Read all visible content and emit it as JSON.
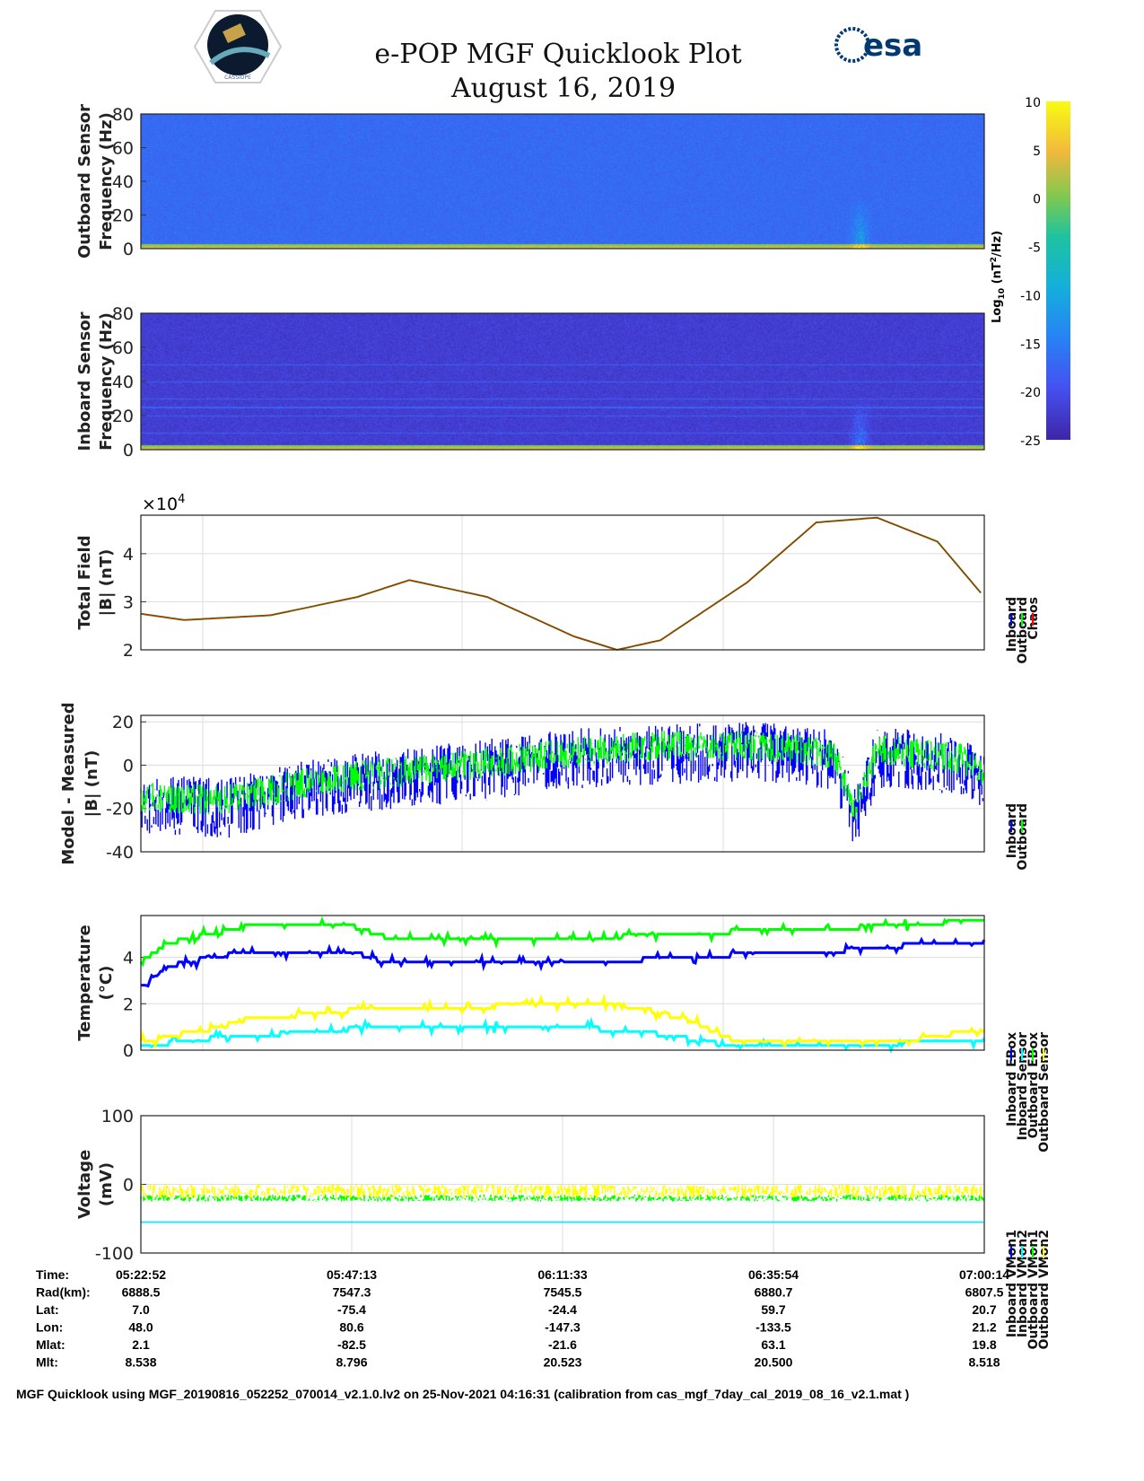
{
  "header": {
    "title": "e-POP MGF Quicklook Plot",
    "date": "August 16, 2019",
    "logo_left": "CASSIOPE",
    "logo_right": "esa"
  },
  "colorbar": {
    "label_main": "Log",
    "label_sub": "10",
    "label_rest": " (nT",
    "label_sup": "2",
    "label_end": "/Hz)",
    "ticks": [
      "10",
      "5",
      "0",
      "-5",
      "-10",
      "-15",
      "-20",
      "-25"
    ],
    "range": [
      -25,
      10
    ]
  },
  "footer": "MGF Quicklook using MGF_20190816_052252_070014_v2.1.0.lv2 on 25-Nov-2021 04:16:31 (calibration from cas_mgf_7day_cal_2019_08_16_v2.1.mat )",
  "ephemeris": {
    "labels": [
      "Time:",
      "Rad(km):",
      "Lat:",
      "Lon:",
      "Mlat:",
      "Mlt:"
    ],
    "columns": [
      [
        "05:22:52",
        "6888.5",
        "7.0",
        "48.0",
        "2.1",
        "8.538"
      ],
      [
        "05:47:13",
        "7547.3",
        "-75.4",
        "80.6",
        "-82.5",
        "8.796"
      ],
      [
        "06:11:33",
        "7545.5",
        "-24.4",
        "-147.3",
        "-21.6",
        "20.523"
      ],
      [
        "06:35:54",
        "6880.7",
        "59.7",
        "-133.5",
        "63.1",
        "20.500"
      ],
      [
        "07:00:14",
        "6807.5",
        "20.7",
        "21.2",
        "19.8",
        "8.518"
      ]
    ]
  },
  "chart_data": [
    {
      "type": "heatmap",
      "title": "Outboard spectrogram",
      "ylabel": [
        "Outboard Sensor",
        "Frequency (Hz)"
      ],
      "ylim": [
        0,
        80
      ],
      "yticks": [
        "0",
        "20",
        "40",
        "60",
        "80"
      ],
      "background_log10": -17,
      "low_freq_log10": 5,
      "burst_at_min": 83
    },
    {
      "type": "heatmap",
      "title": "Inboard spectrogram",
      "ylabel": [
        "Inboard Sensor",
        "Frequency (Hz)"
      ],
      "ylim": [
        0,
        80
      ],
      "yticks": [
        "0",
        "20",
        "40",
        "60",
        "80"
      ],
      "background_log10": -22,
      "line_freqs_hz": [
        10,
        20,
        25,
        30,
        40,
        50
      ],
      "low_freq_log10": 5,
      "burst_at_min": 83
    },
    {
      "type": "line",
      "ylabel": [
        "Total Field",
        "|B| (nT)"
      ],
      "exponent_label": "×10",
      "exponent_sup": "4",
      "ylim": [
        2,
        4.8
      ],
      "yticks": [
        "2",
        "3",
        "4"
      ],
      "x_min": [
        0,
        5,
        15,
        25,
        31,
        40,
        50,
        55,
        60,
        70,
        78,
        85,
        92,
        97.4
      ],
      "legend": [
        "Inboard",
        "Outboard",
        "Chaos"
      ],
      "series": [
        {
          "name": "Chaos",
          "values": [
            2.75,
            2.62,
            2.72,
            3.1,
            3.45,
            3.1,
            2.28,
            2.0,
            2.2,
            3.4,
            4.65,
            4.75,
            4.25,
            3.1
          ]
        }
      ]
    },
    {
      "type": "line",
      "ylabel": [
        "Model - Measured",
        "|B| (nT)"
      ],
      "ylim": [
        -40,
        23
      ],
      "yticks": [
        "20",
        "0",
        "-20",
        "-40"
      ],
      "x_min": [
        0,
        10,
        20,
        30,
        40,
        50,
        60,
        70,
        75,
        80,
        82.5,
        85,
        88,
        95,
        97.4
      ],
      "legend": [
        "Inboard",
        "Outboard"
      ],
      "series": [
        {
          "name": "Inboard",
          "values": [
            -18,
            -20,
            -10,
            -6,
            -2,
            3,
            5,
            6,
            5,
            2,
            -25,
            3,
            3,
            0,
            -6
          ],
          "spread": 14
        },
        {
          "name": "Outboard",
          "values": [
            -15,
            -16,
            -7,
            -3,
            1,
            6,
            9,
            9,
            8,
            5,
            -20,
            7,
            6,
            3,
            -4
          ],
          "spread": 7
        }
      ]
    },
    {
      "type": "line",
      "ylabel": [
        "Temperature",
        "(°C)"
      ],
      "ylim": [
        0,
        5.8
      ],
      "yticks": [
        "0",
        "2",
        "4"
      ],
      "x_min": [
        0,
        3,
        8,
        12,
        24,
        29,
        53,
        58,
        63,
        68,
        78,
        88,
        97.4
      ],
      "legend": [
        "Inboard EBox",
        "Inboard Sensor",
        "Outboard EBox",
        "Outboard Sensor"
      ],
      "series": [
        {
          "name": "Inboard EBox",
          "values": [
            3.8,
            4.6,
            5.0,
            5.3,
            5.4,
            4.8,
            4.8,
            5.0,
            5.0,
            5.1,
            5.2,
            5.4,
            5.6
          ]
        },
        {
          "name": "Inboard Sensor",
          "values": [
            2.7,
            3.6,
            4.0,
            4.2,
            4.3,
            3.7,
            3.7,
            3.9,
            4.0,
            4.1,
            4.2,
            4.5,
            4.6
          ]
        },
        {
          "name": "Outboard EBox",
          "values": [
            0.1,
            0.3,
            0.5,
            0.6,
            0.9,
            0.9,
            0.9,
            0.8,
            0.5,
            0.2,
            0.2,
            0.3,
            0.5
          ]
        },
        {
          "name": "Outboard Sensor",
          "values": [
            0.3,
            0.6,
            0.9,
            1.3,
            1.7,
            1.8,
            2.0,
            1.8,
            1.3,
            0.5,
            0.3,
            0.4,
            0.9
          ]
        }
      ]
    },
    {
      "type": "line",
      "ylabel": [
        "Voltage",
        "(mV)"
      ],
      "ylim": [
        -100,
        100
      ],
      "yticks": [
        "100",
        "0",
        "-100"
      ],
      "x_min": [
        0,
        97.4
      ],
      "legend": [
        "Inboard VMon1",
        "Inboard VMon2",
        "Outboard VMon1",
        "Outboard VMon2"
      ],
      "series": [
        {
          "name": "Inboard VMon1",
          "values": [
            -55,
            -55
          ]
        },
        {
          "name": "Inboard VMon2",
          "values": [
            -55,
            -55
          ]
        },
        {
          "name": "Outboard VMon1",
          "values": [
            -20,
            -20
          ]
        },
        {
          "name": "Outboard VMon2",
          "values": [
            -10,
            -10
          ]
        }
      ]
    }
  ],
  "colors": {
    "Inboard": "#0000ff",
    "Outboard": "#00ff00",
    "Chaos": "#ff0000",
    "cyan": "#00ffff",
    "yellow": "#ffff00"
  }
}
